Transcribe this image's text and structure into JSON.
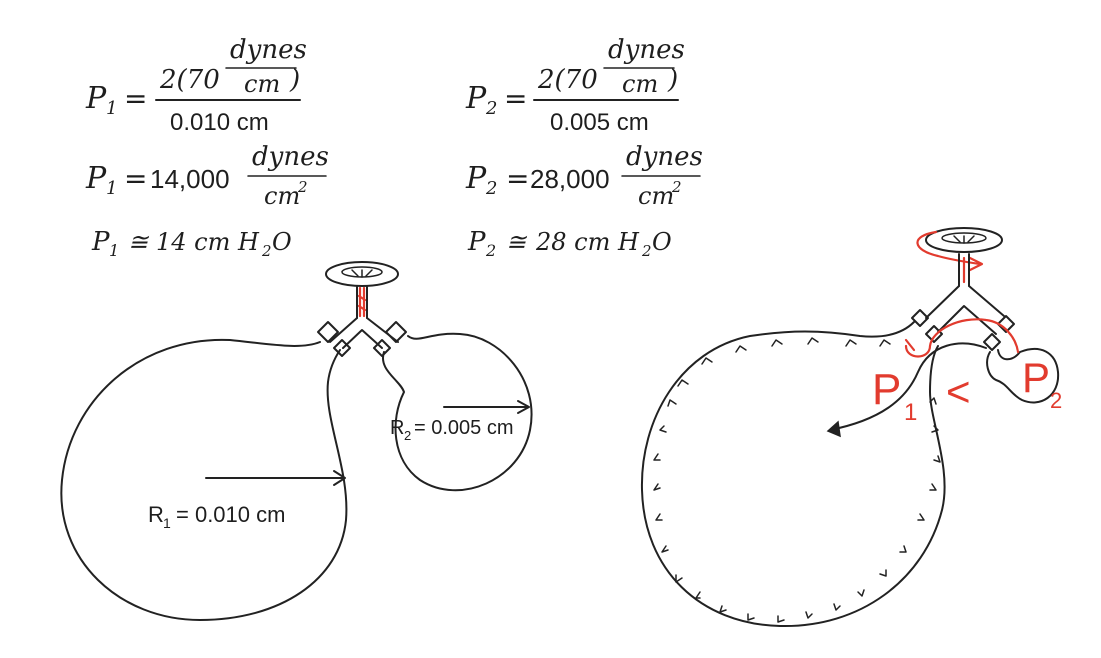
{
  "equations": {
    "p1": {
      "symbol": "P",
      "subscript": "1",
      "numerator_prefix": "2(70",
      "numerator_unit_top": "dynes",
      "numerator_unit_bottom": "cm",
      "numerator_suffix": ")",
      "denominator": "0.010 cm",
      "result_value": "14,000",
      "result_unit_top": "dynes",
      "result_unit_bottom": "cm",
      "result_unit_exp": "2",
      "approx_value": "14 cm H",
      "approx_sub": "2",
      "approx_tail": "O"
    },
    "p2": {
      "symbol": "P",
      "subscript": "2",
      "numerator_prefix": "2(70",
      "numerator_unit_top": "dynes",
      "numerator_unit_bottom": "cm",
      "numerator_suffix": ")",
      "denominator": "0.005 cm",
      "result_value": "28,000",
      "result_unit_top": "dynes",
      "result_unit_bottom": "cm",
      "result_unit_exp": "2",
      "approx_value": "28 cm H",
      "approx_sub": "2",
      "approx_tail": "O"
    },
    "equals_sign": "=",
    "approx_sign": "≅"
  },
  "left_diagram": {
    "r1": {
      "symbol": "R",
      "subscript": "1",
      "value": "= 0.010 cm"
    },
    "r2": {
      "symbol": "R",
      "subscript": "2",
      "value": "= 0.005 cm"
    }
  },
  "right_diagram": {
    "p1": {
      "symbol": "P",
      "subscript": "1"
    },
    "less_than": "<",
    "p2": {
      "symbol": "P",
      "subscript": "2"
    }
  },
  "colors": {
    "ink": "#222222",
    "annotation": "#e23b2e",
    "background": "#ffffff"
  }
}
